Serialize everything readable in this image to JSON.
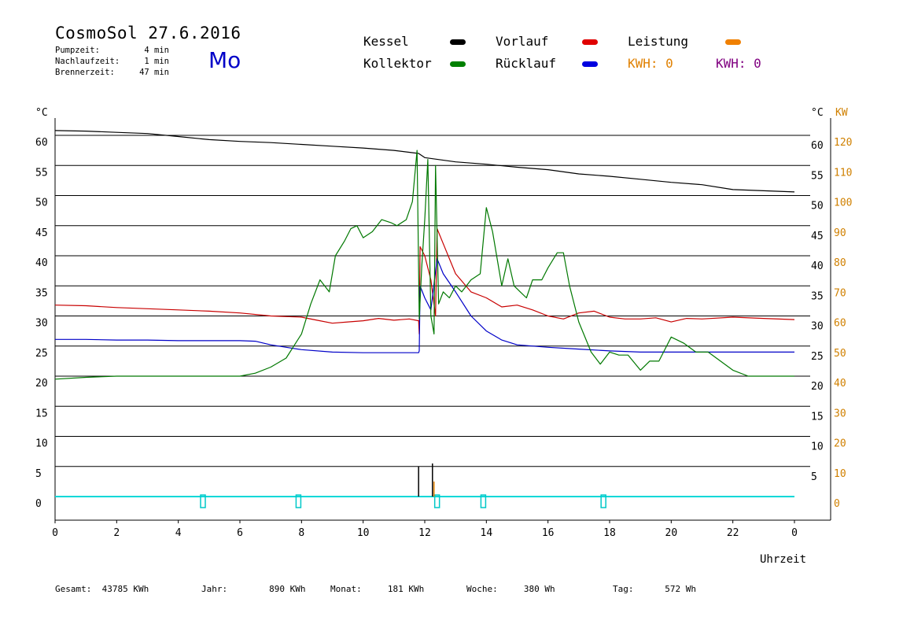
{
  "header": {
    "title": "CosmoSol 27.6.2016",
    "weekday": "Mo",
    "stats": [
      {
        "label": "Pumpzeit:",
        "value": "4 min"
      },
      {
        "label": "Nachlaufzeit:",
        "value": "1 min"
      },
      {
        "label": "Brennerzeit:",
        "value": "47 min"
      }
    ]
  },
  "legend": [
    {
      "name": "Kessel",
      "color": "#000000"
    },
    {
      "name": "Vorlauf",
      "color": "#e00000"
    },
    {
      "name": "Leistung",
      "color": "#f08000"
    },
    {
      "name": "Kollektor",
      "color": "#008000"
    },
    {
      "name": "Rücklauf",
      "color": "#0000e0"
    }
  ],
  "kwh": [
    {
      "text": "KWH: 0",
      "color": "#e08000"
    },
    {
      "text": "KWH: 0",
      "color": "#800080"
    }
  ],
  "footer": [
    {
      "label": "Gesamt:",
      "value": "43785 KWh"
    },
    {
      "label": "Jahr:",
      "value": "890 KWh"
    },
    {
      "label": "Monat:",
      "value": "181 KWh"
    },
    {
      "label": "Woche:",
      "value": "380 Wh"
    },
    {
      "label": "Tag:",
      "value": "572 Wh"
    }
  ],
  "chart_data": {
    "type": "line",
    "xlabel": "Uhrzeit",
    "ylabel_left": "°C",
    "ylabel_right": "°C",
    "ylabel_right2": "KW",
    "xlim": [
      0,
      24
    ],
    "ylim": [
      0,
      60
    ],
    "ylim_kw": [
      0,
      120
    ],
    "x_ticks": [
      "0",
      "2",
      "4",
      "6",
      "8",
      "10",
      "12",
      "14",
      "16",
      "18",
      "20",
      "22",
      "0"
    ],
    "y_ticks": [
      0,
      5,
      10,
      15,
      20,
      25,
      30,
      35,
      40,
      45,
      50,
      55,
      60
    ],
    "kw_ticks": [
      0,
      10,
      20,
      30,
      40,
      50,
      60,
      70,
      80,
      90,
      100,
      110,
      120
    ],
    "grid": true,
    "series": [
      {
        "name": "Kessel",
        "color": "#000000",
        "x": [
          0,
          1,
          2,
          3,
          4,
          5,
          6,
          7,
          8,
          9,
          10,
          11,
          11.8,
          12,
          13,
          14,
          15,
          16,
          17,
          18,
          19,
          20,
          21,
          22,
          23,
          24
        ],
        "y": [
          60.8,
          60.7,
          60.5,
          60.3,
          59.8,
          59.3,
          59,
          58.8,
          58.5,
          58.2,
          57.9,
          57.5,
          57,
          56.3,
          55.6,
          55.2,
          54.7,
          54.3,
          53.6,
          53.2,
          52.7,
          52.2,
          51.8,
          51,
          50.8,
          50.6
        ]
      },
      {
        "name": "Vorlauf",
        "color": "#c80000",
        "x": [
          0,
          1,
          2,
          3,
          4,
          5,
          6,
          7,
          8,
          8.5,
          9,
          9.5,
          10,
          10.5,
          11,
          11.5,
          11.8,
          11.82,
          11.85,
          12,
          12.2,
          12.35,
          12.4,
          12.6,
          13,
          13.5,
          14,
          14.5,
          15,
          15.5,
          16,
          16.5,
          17,
          17.5,
          18,
          18.5,
          19,
          19.5,
          20,
          20.5,
          21,
          22,
          23,
          24
        ],
        "y": [
          31.8,
          31.7,
          31.4,
          31.2,
          31,
          30.8,
          30.5,
          30,
          29.8,
          29.3,
          28.8,
          29,
          29.2,
          29.6,
          29.3,
          29.5,
          29.2,
          27,
          41.5,
          40,
          36,
          30,
          44.5,
          42,
          37,
          34,
          33,
          31.5,
          31.8,
          31,
          30,
          29.5,
          30.5,
          30.8,
          29.8,
          29.5,
          29.5,
          29.7,
          29,
          29.6,
          29.5,
          29.8,
          29.6,
          29.4
        ]
      },
      {
        "name": "Rücklauf",
        "color": "#0000c8",
        "x": [
          0,
          1,
          2,
          3,
          4,
          5,
          6,
          6.5,
          7,
          7.5,
          8,
          9,
          10,
          11,
          11.8,
          11.82,
          11.85,
          12,
          12.2,
          12.4,
          12.6,
          13,
          13.5,
          14,
          14.5,
          15,
          16,
          17,
          18,
          19,
          20,
          21,
          22,
          23,
          24
        ],
        "y": [
          26.1,
          26.1,
          26,
          26,
          25.9,
          25.9,
          25.9,
          25.8,
          25.2,
          24.8,
          24.4,
          24,
          23.9,
          23.9,
          23.9,
          24.2,
          35,
          33,
          31,
          39.5,
          37,
          34,
          30,
          27.5,
          26,
          25.2,
          24.8,
          24.5,
          24.2,
          24,
          24,
          24,
          24,
          24,
          24
        ]
      },
      {
        "name": "Kollektor",
        "color": "#007800",
        "x": [
          0,
          1,
          2,
          3,
          4,
          5,
          6,
          6.5,
          7,
          7.5,
          8,
          8.3,
          8.6,
          8.9,
          9.1,
          9.4,
          9.6,
          9.8,
          10,
          10.3,
          10.6,
          10.9,
          11.1,
          11.4,
          11.6,
          11.75,
          11.82,
          11.9,
          12,
          12.1,
          12.2,
          12.3,
          12.35,
          12.45,
          12.6,
          12.8,
          13,
          13.2,
          13.5,
          13.8,
          14,
          14.2,
          14.5,
          14.7,
          14.9,
          15.1,
          15.3,
          15.5,
          15.8,
          16,
          16.3,
          16.5,
          16.7,
          17,
          17.4,
          17.7,
          18,
          18.3,
          18.6,
          19,
          19.3,
          19.6,
          20,
          20.4,
          20.8,
          21.2,
          21.6,
          22,
          22.5,
          23,
          23.5,
          24
        ],
        "y": [
          19.5,
          19.8,
          20,
          20,
          20,
          20,
          20,
          20.5,
          21.5,
          23,
          27,
          32,
          36,
          34,
          40,
          42.5,
          44.5,
          45,
          43,
          44,
          46,
          45.5,
          45,
          46,
          49,
          57.5,
          29.5,
          38,
          46,
          56,
          30,
          27,
          55,
          32,
          34,
          33,
          35,
          34,
          36,
          37,
          48,
          44,
          35,
          39.5,
          35,
          34,
          33,
          36,
          36,
          38,
          40.5,
          40.5,
          35,
          29,
          24,
          22,
          24,
          23.5,
          23.5,
          21,
          22.5,
          22.5,
          26.5,
          25.5,
          24,
          24,
          22.5,
          21,
          20,
          20,
          20,
          20
        ]
      }
    ],
    "bars": [
      {
        "name": "Kessel",
        "color": "#000000",
        "x": 11.8,
        "value": 5
      },
      {
        "name": "Leistung",
        "color": "#e08000",
        "x": 12.3,
        "value": 2.5
      },
      {
        "name": "Kessel",
        "color": "#000000",
        "x": 12.25,
        "value": 5.5
      }
    ],
    "pump_markers_x": [
      4.8,
      7.9,
      12.4,
      13.9,
      17.8
    ]
  }
}
